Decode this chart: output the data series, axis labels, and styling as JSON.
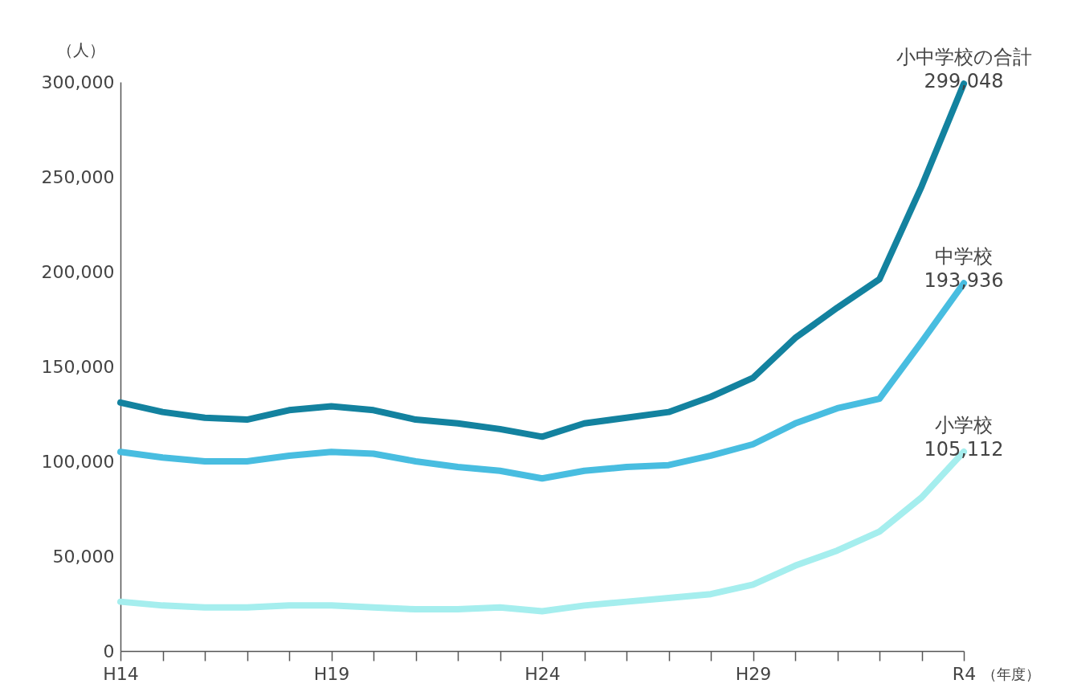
{
  "chart_data": {
    "type": "line",
    "xlabel": "（年度）",
    "ylabel": "（人）",
    "categories": [
      "H14",
      null,
      null,
      null,
      null,
      "H19",
      null,
      null,
      null,
      null,
      "H24",
      null,
      null,
      null,
      null,
      "H29",
      null,
      null,
      null,
      null,
      "R4"
    ],
    "ylim": [
      0,
      300000
    ],
    "yticks": [
      0,
      {
        "value": 50000,
        "label": "50,000"
      },
      {
        "value": 100000,
        "label": "100,000"
      },
      {
        "value": 150000,
        "label": "150,000"
      },
      {
        "value": 200000,
        "label": "200,000"
      },
      {
        "value": 250000,
        "label": "250,000"
      },
      {
        "value": 300000,
        "label": "300,000"
      }
    ],
    "grid": false,
    "legend": false,
    "marker": "none",
    "line_style": "solid",
    "series": [
      {
        "name": "小中学校の合計",
        "color": "#13829f",
        "values": [
          131000,
          126000,
          123000,
          122000,
          127000,
          129000,
          127000,
          122000,
          120000,
          117000,
          113000,
          120000,
          123000,
          126000,
          134000,
          144000,
          165000,
          181000,
          196000,
          245000,
          299048
        ],
        "value_labels": [
          null,
          null,
          null,
          null,
          null,
          null,
          null,
          null,
          null,
          null,
          null,
          null,
          null,
          null,
          null,
          null,
          null,
          null,
          null,
          null,
          "299,048"
        ]
      },
      {
        "name": "中学校",
        "color": "#48bde0",
        "values": [
          105000,
          102000,
          100000,
          100000,
          103000,
          105000,
          104000,
          100000,
          97000,
          95000,
          91000,
          95000,
          97000,
          98000,
          103000,
          109000,
          120000,
          128000,
          133000,
          163000,
          193936
        ],
        "value_labels": [
          null,
          null,
          null,
          null,
          null,
          null,
          null,
          null,
          null,
          null,
          null,
          null,
          null,
          null,
          null,
          null,
          null,
          null,
          null,
          null,
          "193,936"
        ]
      },
      {
        "name": "小学校",
        "color": "#a5eeee",
        "values": [
          26000,
          24000,
          23000,
          23000,
          24000,
          24000,
          23000,
          22000,
          22000,
          23000,
          21000,
          24000,
          26000,
          28000,
          30000,
          35000,
          45000,
          53000,
          63000,
          81000,
          105112
        ],
        "value_labels": [
          null,
          null,
          null,
          null,
          null,
          null,
          null,
          null,
          null,
          null,
          null,
          null,
          null,
          null,
          null,
          null,
          null,
          null,
          null,
          null,
          "105,112"
        ]
      }
    ]
  }
}
